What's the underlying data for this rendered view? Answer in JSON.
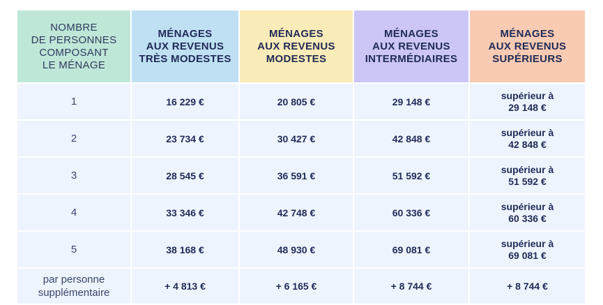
{
  "headers": [
    [
      "NOMBRE",
      "DE PERSONNES",
      "COMPOSANT",
      "LE MÉNAGE"
    ],
    [
      "MÉNAGES",
      "AUX REVENUS",
      "TRÈS MODESTES"
    ],
    [
      "MÉNAGES",
      "AUX REVENUS",
      "MODESTES"
    ],
    [
      "MÉNAGES",
      "AUX REVENUS",
      "INTERMÉDIAIRES"
    ],
    [
      "MÉNAGES",
      "AUX REVENUS",
      "SUPÉRIEURS"
    ]
  ],
  "rows": [
    {
      "label": "1",
      "tres_modestes": "16 229 €",
      "modestes": "20 805 €",
      "intermediaires": "29 148 €",
      "superieurs": [
        "supérieur à",
        "29 148 €"
      ]
    },
    {
      "label": "2",
      "tres_modestes": "23 734 €",
      "modestes": "30 427 €",
      "intermediaires": "42 848 €",
      "superieurs": [
        "supérieur à",
        "42 848 €"
      ]
    },
    {
      "label": "3",
      "tres_modestes": "28 545 €",
      "modestes": "36 591 €",
      "intermediaires": "51 592 €",
      "superieurs": [
        "supérieur à",
        "51 592 €"
      ]
    },
    {
      "label": "4",
      "tres_modestes": "33 346 €",
      "modestes": "42 748 €",
      "intermediaires": "60 336 €",
      "superieurs": [
        "supérieur à",
        "60 336 €"
      ]
    },
    {
      "label": "5",
      "tres_modestes": "38 168 €",
      "modestes": "48 930 €",
      "intermediaires": "69 081 €",
      "superieurs": [
        "supérieur à",
        "69 081 €"
      ]
    }
  ],
  "extra_row": {
    "label": [
      "par personne",
      "supplémentaire"
    ],
    "tres_modestes": "+ 4 813 €",
    "modestes": "+ 6 165 €",
    "intermediaires": "+ 8 744 €",
    "superieurs": "+ 8 744 €"
  },
  "colors": {
    "header_household": "#bfe7d8",
    "header_tres_modestes": "#bfe0f3",
    "header_modestes": "#faecb8",
    "header_intermediaires": "#cbc6f6",
    "header_superieurs": "#f9cbb3",
    "body_cell": "#eef4fd",
    "text": "#1f2a56"
  }
}
